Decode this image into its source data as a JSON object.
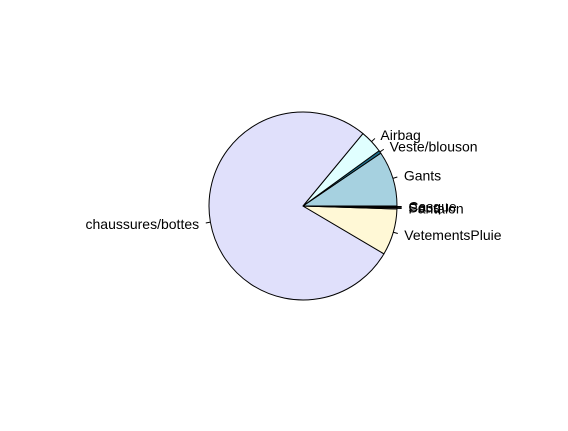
{
  "chart_data": {
    "type": "pie",
    "title": "",
    "start_angle_deg": 0,
    "direction": "counterclockwise",
    "slices": [
      {
        "label": "Gants",
        "value": 9.5,
        "color": "#a6d1e0"
      },
      {
        "label": "Veste/blouson",
        "value": 0.5,
        "color": "#1f6f8b"
      },
      {
        "label": "Airbag",
        "value": 4.0,
        "color": "#e0ffff"
      },
      {
        "label": "chaussures/bottes",
        "value": 77.5,
        "color": "#e0e0fb"
      },
      {
        "label": "VetementsPluie",
        "value": 8.0,
        "color": "#fff8d6"
      },
      {
        "label": "Pantalon",
        "value": 0.2,
        "color": "#f0e0f0"
      },
      {
        "label": "Sous",
        "value": 0.15,
        "color": "#fbe0e0"
      },
      {
        "label": "Casque",
        "value": 0.15,
        "color": "#f0f0ff"
      }
    ]
  }
}
